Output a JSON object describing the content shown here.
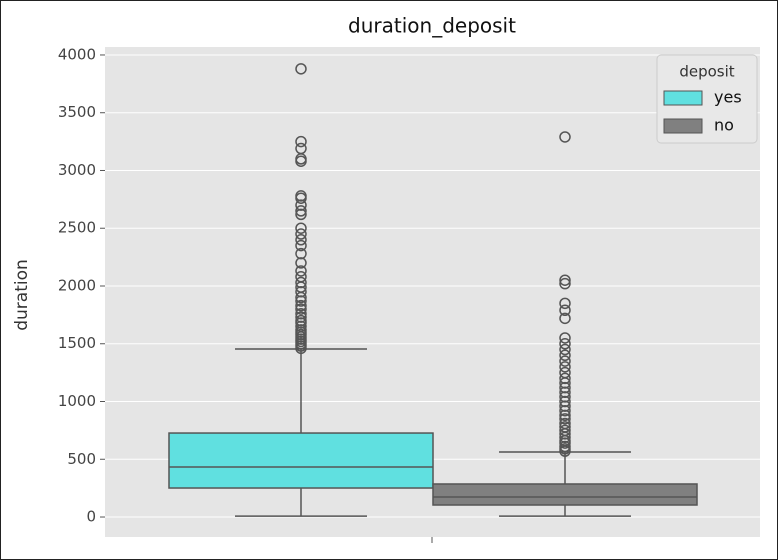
{
  "chart_data": {
    "type": "boxplot",
    "title": "duration_deposit",
    "y_label": "duration",
    "ylim": [
      -173,
      4069
    ],
    "yticks": [
      0,
      500,
      1000,
      1500,
      2000,
      2500,
      3000,
      3500,
      4000
    ],
    "grid": true,
    "legend_title": "deposit",
    "legend_position": "upper right",
    "series": [
      {
        "name": "yes",
        "color": "#60e0e0",
        "whislo": 8,
        "q1": 251,
        "med": 433,
        "q3": 727,
        "whishi": 1455,
        "fliers": [
          1460,
          1480,
          1500,
          1520,
          1540,
          1560,
          1580,
          1600,
          1620,
          1650,
          1680,
          1700,
          1730,
          1760,
          1800,
          1830,
          1870,
          1900,
          1950,
          1990,
          2030,
          2080,
          2130,
          2200,
          2280,
          2350,
          2400,
          2450,
          2500,
          2620,
          2650,
          2700,
          2760,
          2780,
          3080,
          3100,
          3190,
          3250,
          3880
        ]
      },
      {
        "name": "no",
        "color": "#808080",
        "whislo": 8,
        "q1": 104,
        "med": 173,
        "q3": 286,
        "whishi": 563,
        "fliers": [
          570,
          590,
          610,
          640,
          660,
          690,
          720,
          750,
          780,
          810,
          850,
          880,
          920,
          960,
          1000,
          1040,
          1080,
          1120,
          1160,
          1200,
          1250,
          1300,
          1350,
          1400,
          1450,
          1500,
          1550,
          1720,
          1790,
          1850,
          2020,
          2050,
          3290
        ]
      }
    ]
  }
}
